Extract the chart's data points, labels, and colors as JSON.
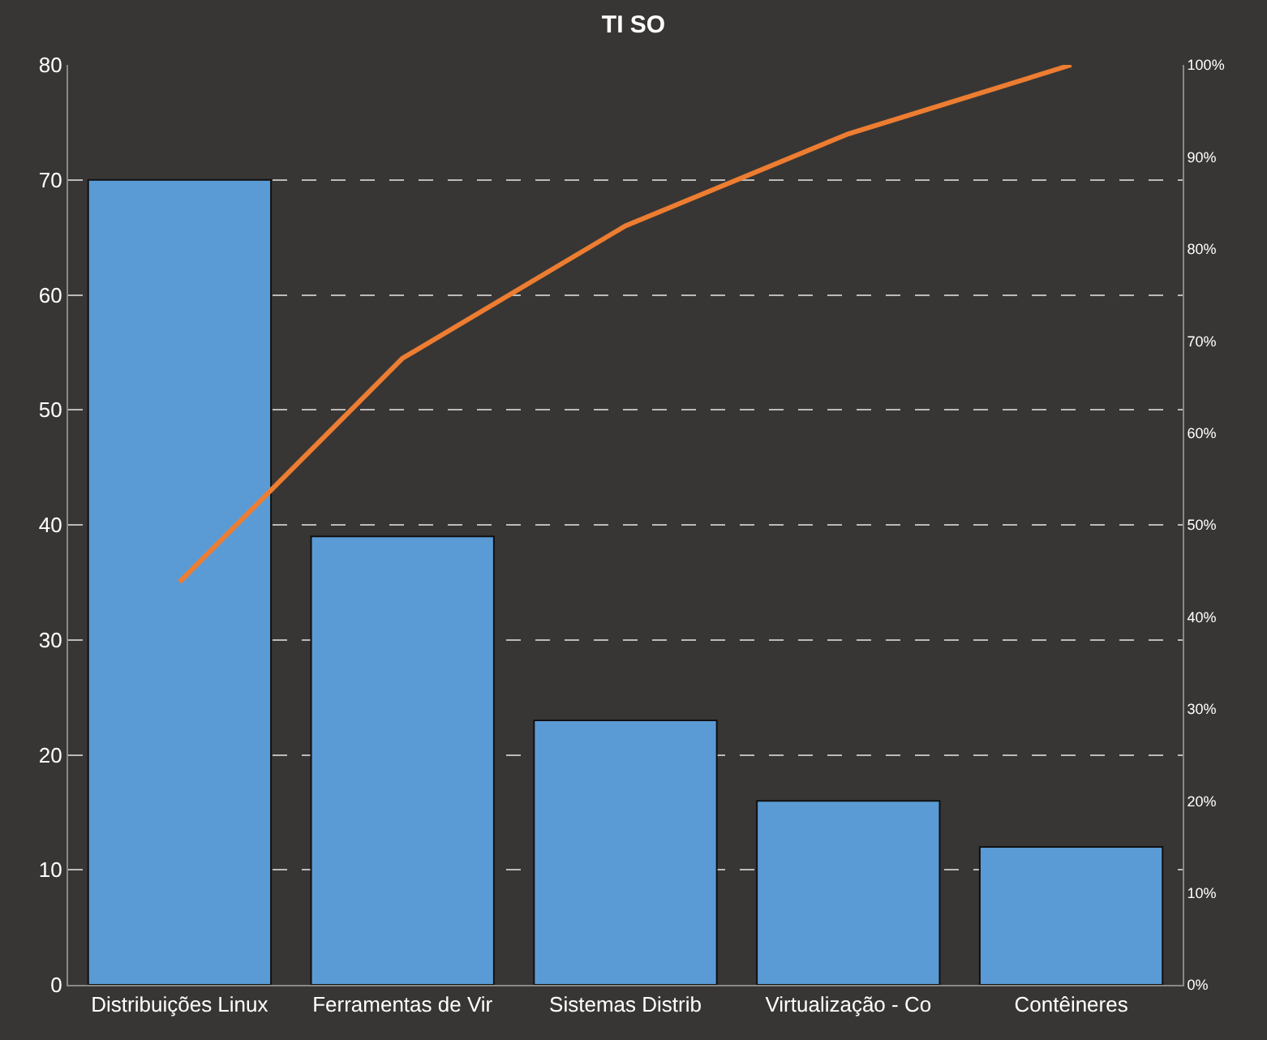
{
  "chart_data": {
    "type": "bar",
    "title": "TI SO",
    "categories": [
      "Distribuições Linux",
      "Ferramentas de Vir",
      "Sistemas Distrib",
      "Virtualização - Co",
      "Contêineres"
    ],
    "series": [
      {
        "color": "#5b9bd5",
        "values": [
          70,
          39,
          23,
          16,
          12
        ]
      },
      {
        "type": "line",
        "axis": "y2",
        "color": "#ed7d31",
        "values": [
          43.8,
          68.1,
          82.5,
          92.5,
          100
        ]
      }
    ],
    "ylim": [
      0,
      80
    ],
    "yticks": [
      0,
      10,
      20,
      30,
      40,
      50,
      60,
      70,
      80
    ],
    "y2lim": [
      0,
      100
    ],
    "y2ticks": [
      {
        "value": 0,
        "label": "0%"
      },
      {
        "value": 10,
        "label": "10%"
      },
      {
        "value": 20,
        "label": "20%"
      },
      {
        "value": 30,
        "label": "30%"
      },
      {
        "value": 40,
        "label": "40%"
      },
      {
        "value": 50,
        "label": "50%"
      },
      {
        "value": 60,
        "label": "60%"
      },
      {
        "value": 70,
        "label": "70%"
      },
      {
        "value": 80,
        "label": "80%"
      },
      {
        "value": 90,
        "label": "90%"
      },
      {
        "value": 100,
        "label": "100%"
      }
    ],
    "grid": "y",
    "legend": false,
    "marker": "none",
    "line_style": "solid"
  }
}
